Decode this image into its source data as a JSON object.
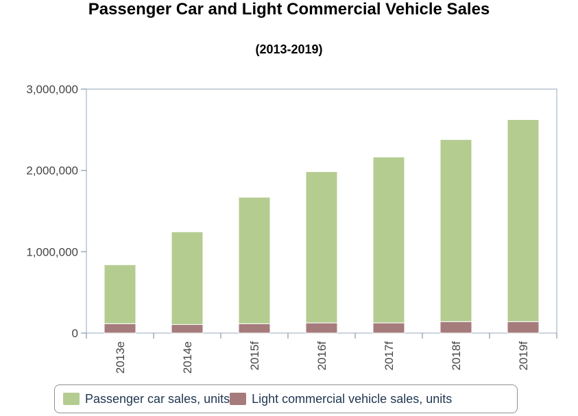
{
  "colors": {
    "passenger": "#b5cc91",
    "commercial": "#a67b7b"
  },
  "chart_data": {
    "type": "bar",
    "stacked": true,
    "title": "Passenger Car and Light Commercial Vehicle Sales",
    "subtitle": "(2013-2019)",
    "categories": [
      "2013e",
      "2014e",
      "2015f",
      "2016f",
      "2017f",
      "2018f",
      "2019f"
    ],
    "series": [
      {
        "name": "Light commercial vehicle sales, units",
        "values": [
          115000,
          105000,
          115000,
          125000,
          125000,
          140000,
          140000
        ]
      },
      {
        "name": "Passenger car sales, units",
        "values": [
          725000,
          1140000,
          1555000,
          1860000,
          2040000,
          2240000,
          2485000
        ]
      }
    ],
    "yticks": [
      "0",
      "1,000,000",
      "2,000,000",
      "3,000,000"
    ],
    "ylim": [
      0,
      3000000
    ],
    "legend_position": "bottom"
  },
  "legend": {
    "passenger_label": "Passenger car sales, units",
    "commercial_label": "Light commercial vehicle sales, units"
  }
}
